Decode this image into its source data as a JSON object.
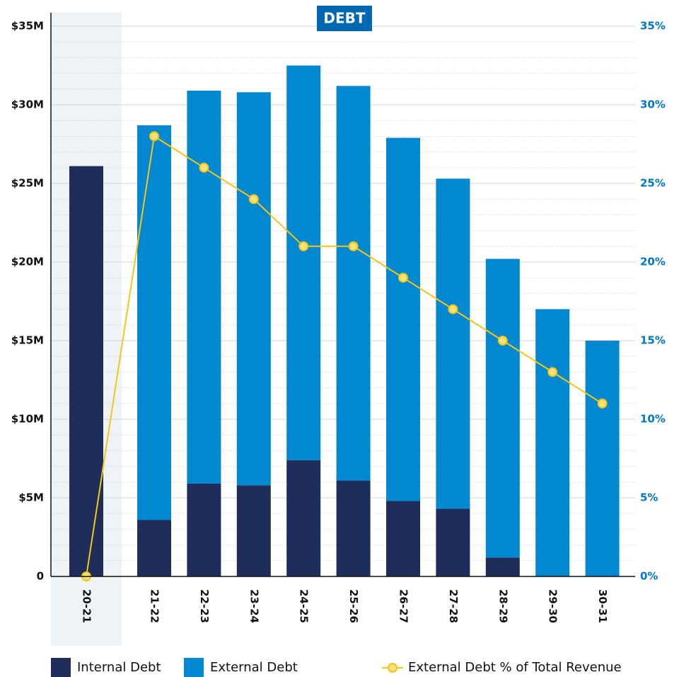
{
  "chart_data": {
    "type": "stacked_bar_line",
    "title": "DEBT",
    "categories": [
      "20-21",
      "21-22",
      "22-23",
      "23-24",
      "24-25",
      "25-26",
      "26-27",
      "27-28",
      "28-29",
      "29-30",
      "30-31"
    ],
    "series": [
      {
        "name": "Internal Debt",
        "color": "#1f2d5a",
        "type": "bar",
        "values": [
          26.1,
          3.6,
          5.9,
          5.8,
          7.4,
          6.1,
          4.8,
          4.3,
          1.2,
          0,
          0
        ]
      },
      {
        "name": "External Debt",
        "color": "#0288d1",
        "type": "bar",
        "values": [
          0,
          25.1,
          25.0,
          25.0,
          25.1,
          25.1,
          23.1,
          21.0,
          19.0,
          17.0,
          15.0
        ]
      },
      {
        "name": "External Debt % of Total Revenue",
        "color": "#f5c518",
        "type": "line",
        "axis": "y2",
        "values": [
          0,
          28,
          26,
          24,
          21,
          21,
          19,
          17,
          15,
          13,
          11
        ]
      }
    ],
    "ylim": [
      0,
      35
    ],
    "yticks": [
      0,
      {
        "value": 5,
        "label": "$5M"
      },
      {
        "value": 10,
        "label": "$10M"
      },
      {
        "value": 15,
        "label": "$15M"
      },
      {
        "value": 20,
        "label": "$20M"
      },
      {
        "value": 25,
        "label": "$25M"
      },
      {
        "value": 30,
        "label": "$30M"
      },
      {
        "value": 35,
        "label": "$35M"
      }
    ],
    "y2lim": [
      0,
      35
    ],
    "y2ticks": [
      {
        "value": 0,
        "label": "0%"
      },
      {
        "value": 5,
        "label": "5%"
      },
      {
        "value": 10,
        "label": "10%"
      },
      {
        "value": 15,
        "label": "15%"
      },
      {
        "value": 20,
        "label": "20%"
      },
      {
        "value": 25,
        "label": "25%"
      },
      {
        "value": 30,
        "label": "30%"
      },
      {
        "value": 35,
        "label": "35%"
      }
    ],
    "grid": true,
    "legend": "bottom"
  }
}
